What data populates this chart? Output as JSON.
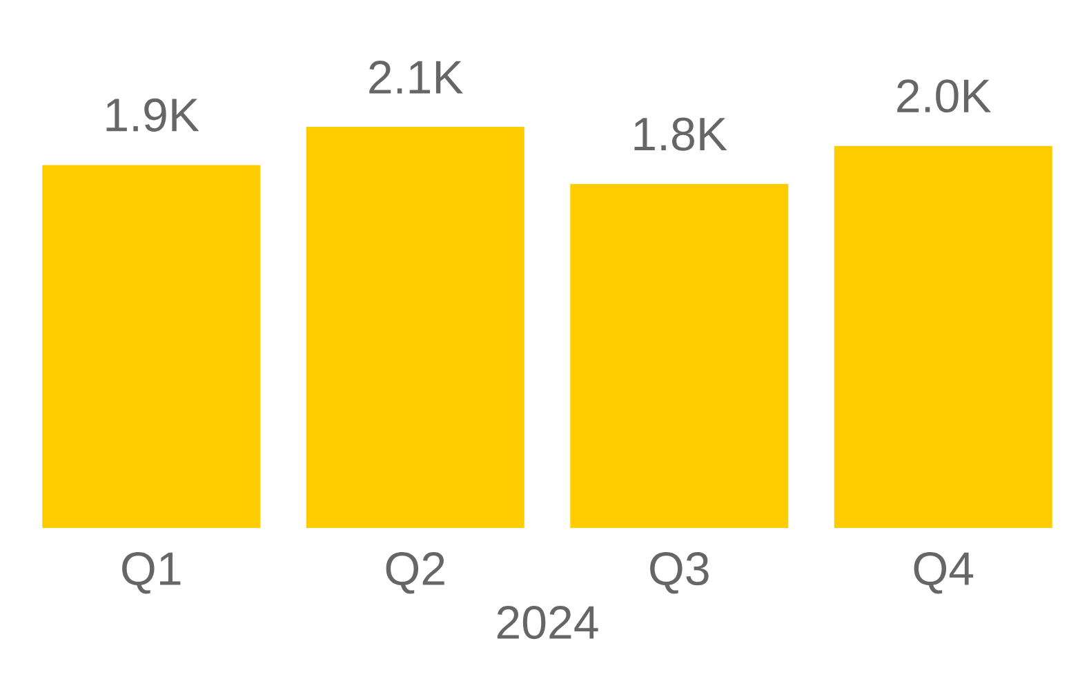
{
  "chart_data": {
    "type": "bar",
    "xlabel": "2024",
    "categories": [
      "Q1",
      "Q2",
      "Q3",
      "Q4"
    ],
    "values": [
      1900,
      2100,
      1800,
      2000
    ],
    "value_labels": [
      "1.9K",
      "2.1K",
      "1.8K",
      "2.0K"
    ],
    "color": "#ffcc00"
  }
}
